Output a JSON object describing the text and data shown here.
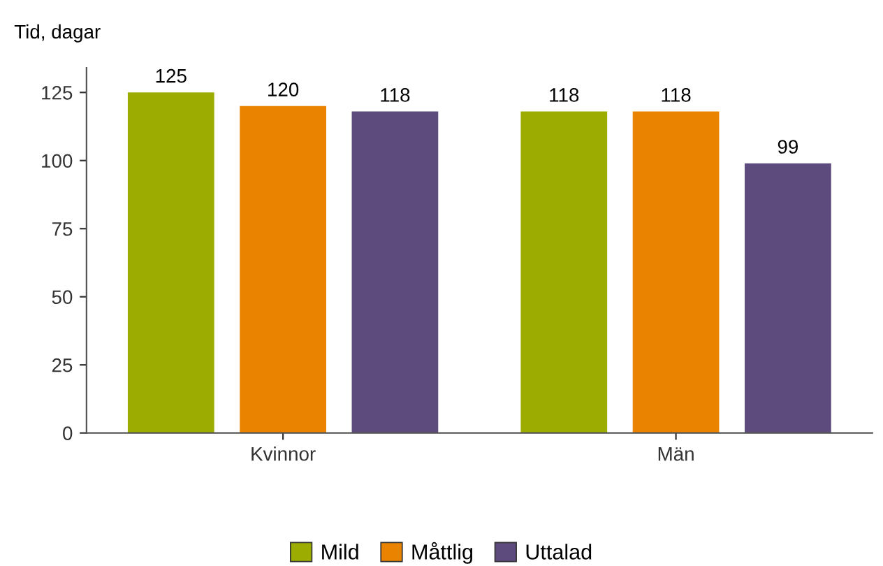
{
  "chart_data": {
    "type": "bar",
    "ylabel": "Tid, dagar",
    "categories": [
      "Kvinnor",
      "Män"
    ],
    "series": [
      {
        "name": "Mild",
        "color": "#9cac00",
        "values": [
          125,
          118
        ]
      },
      {
        "name": "Måttlig",
        "color": "#e98300",
        "values": [
          120,
          118
        ]
      },
      {
        "name": "Uttalad",
        "color": "#5e4b7d",
        "values": [
          118,
          99
        ]
      }
    ],
    "ylim": [
      0,
      134
    ],
    "yticks": [
      0,
      25,
      50,
      75,
      100,
      125
    ],
    "data_labels": true,
    "grid": false,
    "legend": "bottom"
  }
}
